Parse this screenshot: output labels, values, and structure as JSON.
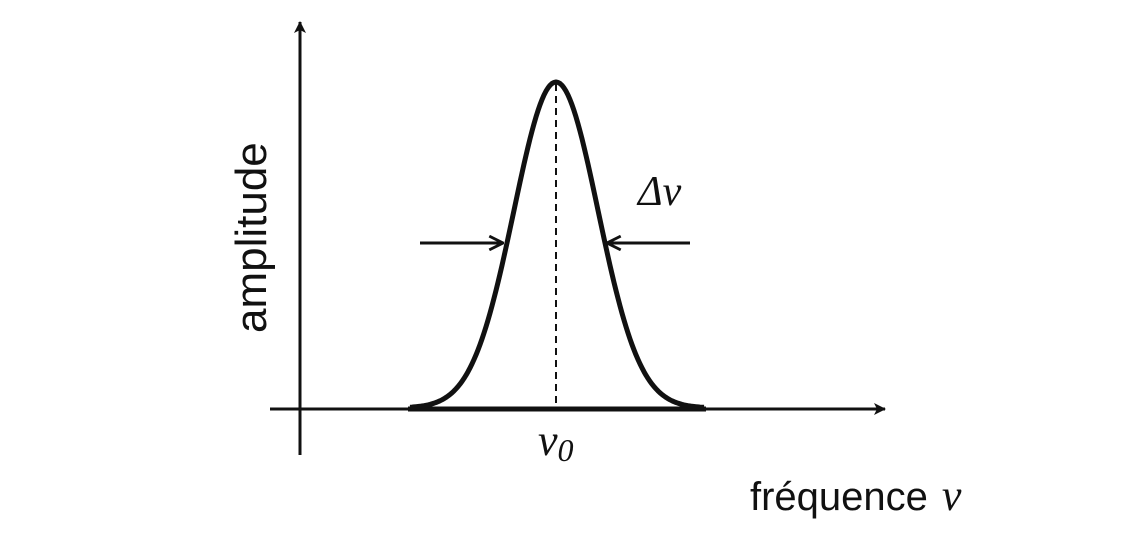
{
  "diagram": {
    "y_axis_label": "amplitude",
    "x_axis_label": "fréquence",
    "x_axis_symbol": "ν",
    "center_label": "ν",
    "center_subscript": "0",
    "width_label": "Δν",
    "curve_shape": "gaussian",
    "line_color": "#111111"
  }
}
